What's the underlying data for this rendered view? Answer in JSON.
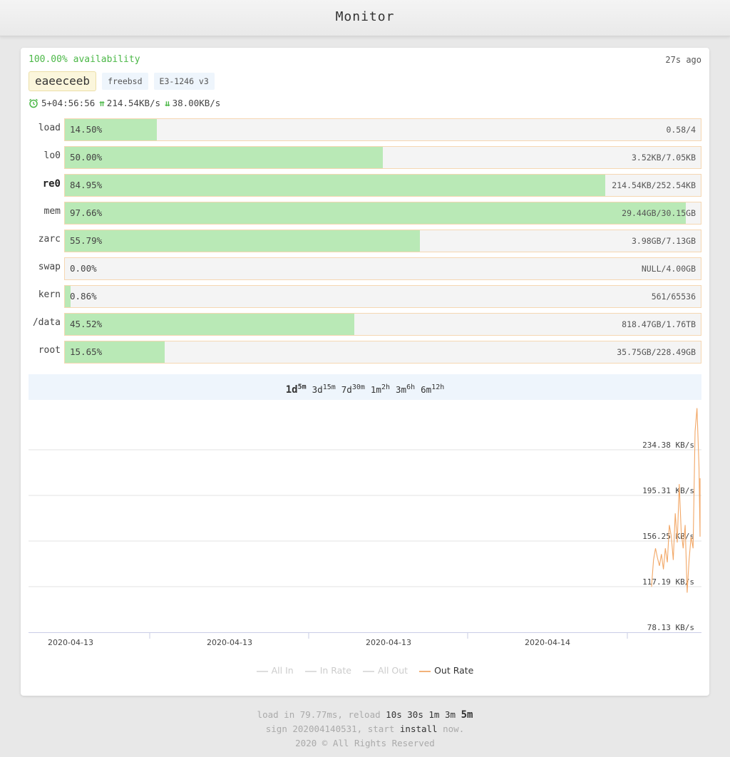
{
  "header": {
    "title": "Monitor"
  },
  "server": {
    "availability": "100.00% availability",
    "updated": "27s ago",
    "hostname": "eaeeceeb",
    "os": "freebsd",
    "cpu": "E3-1246 v3",
    "uptime": "5+04:56:56",
    "upload": "214.54KB/s",
    "download": "38.00KB/s"
  },
  "metrics": [
    {
      "label": "load",
      "percent_text": "14.50%",
      "percent": 14.5,
      "value": "0.58/4",
      "bold": false
    },
    {
      "label": "lo0",
      "percent_text": "50.00%",
      "percent": 50.0,
      "value": "3.52KB/7.05KB",
      "bold": false
    },
    {
      "label": "re0",
      "percent_text": "84.95%",
      "percent": 84.95,
      "value": "214.54KB/252.54KB",
      "bold": true
    },
    {
      "label": "mem",
      "percent_text": "97.66%",
      "percent": 97.66,
      "value": "29.44GB/30.15GB",
      "bold": false
    },
    {
      "label": "zarc",
      "percent_text": "55.79%",
      "percent": 55.79,
      "value": "3.98GB/7.13GB",
      "bold": false
    },
    {
      "label": "swap",
      "percent_text": "0.00%",
      "percent": 0.0,
      "value": "NULL/4.00GB",
      "bold": false
    },
    {
      "label": "kern",
      "percent_text": "0.86%",
      "percent": 0.86,
      "value": "561/65536",
      "bold": false
    },
    {
      "label": "/data",
      "percent_text": "45.52%",
      "percent": 45.52,
      "value": "818.47GB/1.76TB",
      "bold": false
    },
    {
      "label": "root",
      "percent_text": "15.65%",
      "percent": 15.65,
      "value": "35.75GB/228.49GB",
      "bold": false
    }
  ],
  "ranges": [
    {
      "label": "1d",
      "sub": "5m",
      "active": true
    },
    {
      "label": "3d",
      "sub": "15m",
      "active": false
    },
    {
      "label": "7d",
      "sub": "30m",
      "active": false
    },
    {
      "label": "1m",
      "sub": "2h",
      "active": false
    },
    {
      "label": "3m",
      "sub": "6h",
      "active": false
    },
    {
      "label": "6m",
      "sub": "12h",
      "active": false
    }
  ],
  "chart_data": {
    "type": "line",
    "ylabel": "",
    "y_ticks": [
      "234.38 KB/s",
      "195.31 KB/s",
      "156.25 KB/s",
      "117.19 KB/s",
      "78.13 KB/s"
    ],
    "y_tick_values": [
      234.38,
      195.31,
      156.25,
      117.19,
      78.13
    ],
    "ylim": [
      78.13,
      273.44
    ],
    "x_tick_labels": [
      "2020-04-13",
      "2020-04-13",
      "2020-04-13",
      "2020-04-14"
    ],
    "grid": true,
    "legend_position": "bottom",
    "series": [
      {
        "name": "All In",
        "visible": false,
        "color": "#dddddd",
        "values": []
      },
      {
        "name": "In Rate",
        "visible": false,
        "color": "#dddddd",
        "values": []
      },
      {
        "name": "All Out",
        "visible": false,
        "color": "#dddddd",
        "values": []
      },
      {
        "name": "Out Rate",
        "visible": true,
        "color": "#f2a766",
        "x_fraction": [
          0.936,
          0.939,
          0.942,
          0.945,
          0.948,
          0.951,
          0.954,
          0.957,
          0.96,
          0.963,
          0.966,
          0.969,
          0.972,
          0.975,
          0.978,
          0.981,
          0.984,
          0.987,
          0.99,
          0.993,
          0.996,
          0.999,
          1.002,
          1.005,
          1.008,
          1.011,
          1.014
        ],
        "values": [
          117,
          140,
          150,
          142,
          135,
          145,
          132,
          150,
          138,
          170,
          160,
          140,
          180,
          155,
          205,
          165,
          150,
          170,
          112,
          140,
          160,
          150,
          250,
          270,
          220,
          160,
          210
        ]
      }
    ]
  },
  "footer": {
    "load_prefix": "load in 79.77ms, reload",
    "reload_options": [
      "10s",
      "30s",
      "1m",
      "3m"
    ],
    "reload_active": "5m",
    "sign_prefix": "sign 202004140531, start",
    "install_link": "install",
    "sign_suffix": "now.",
    "copyright": "2020 © All Rights Reserved"
  }
}
